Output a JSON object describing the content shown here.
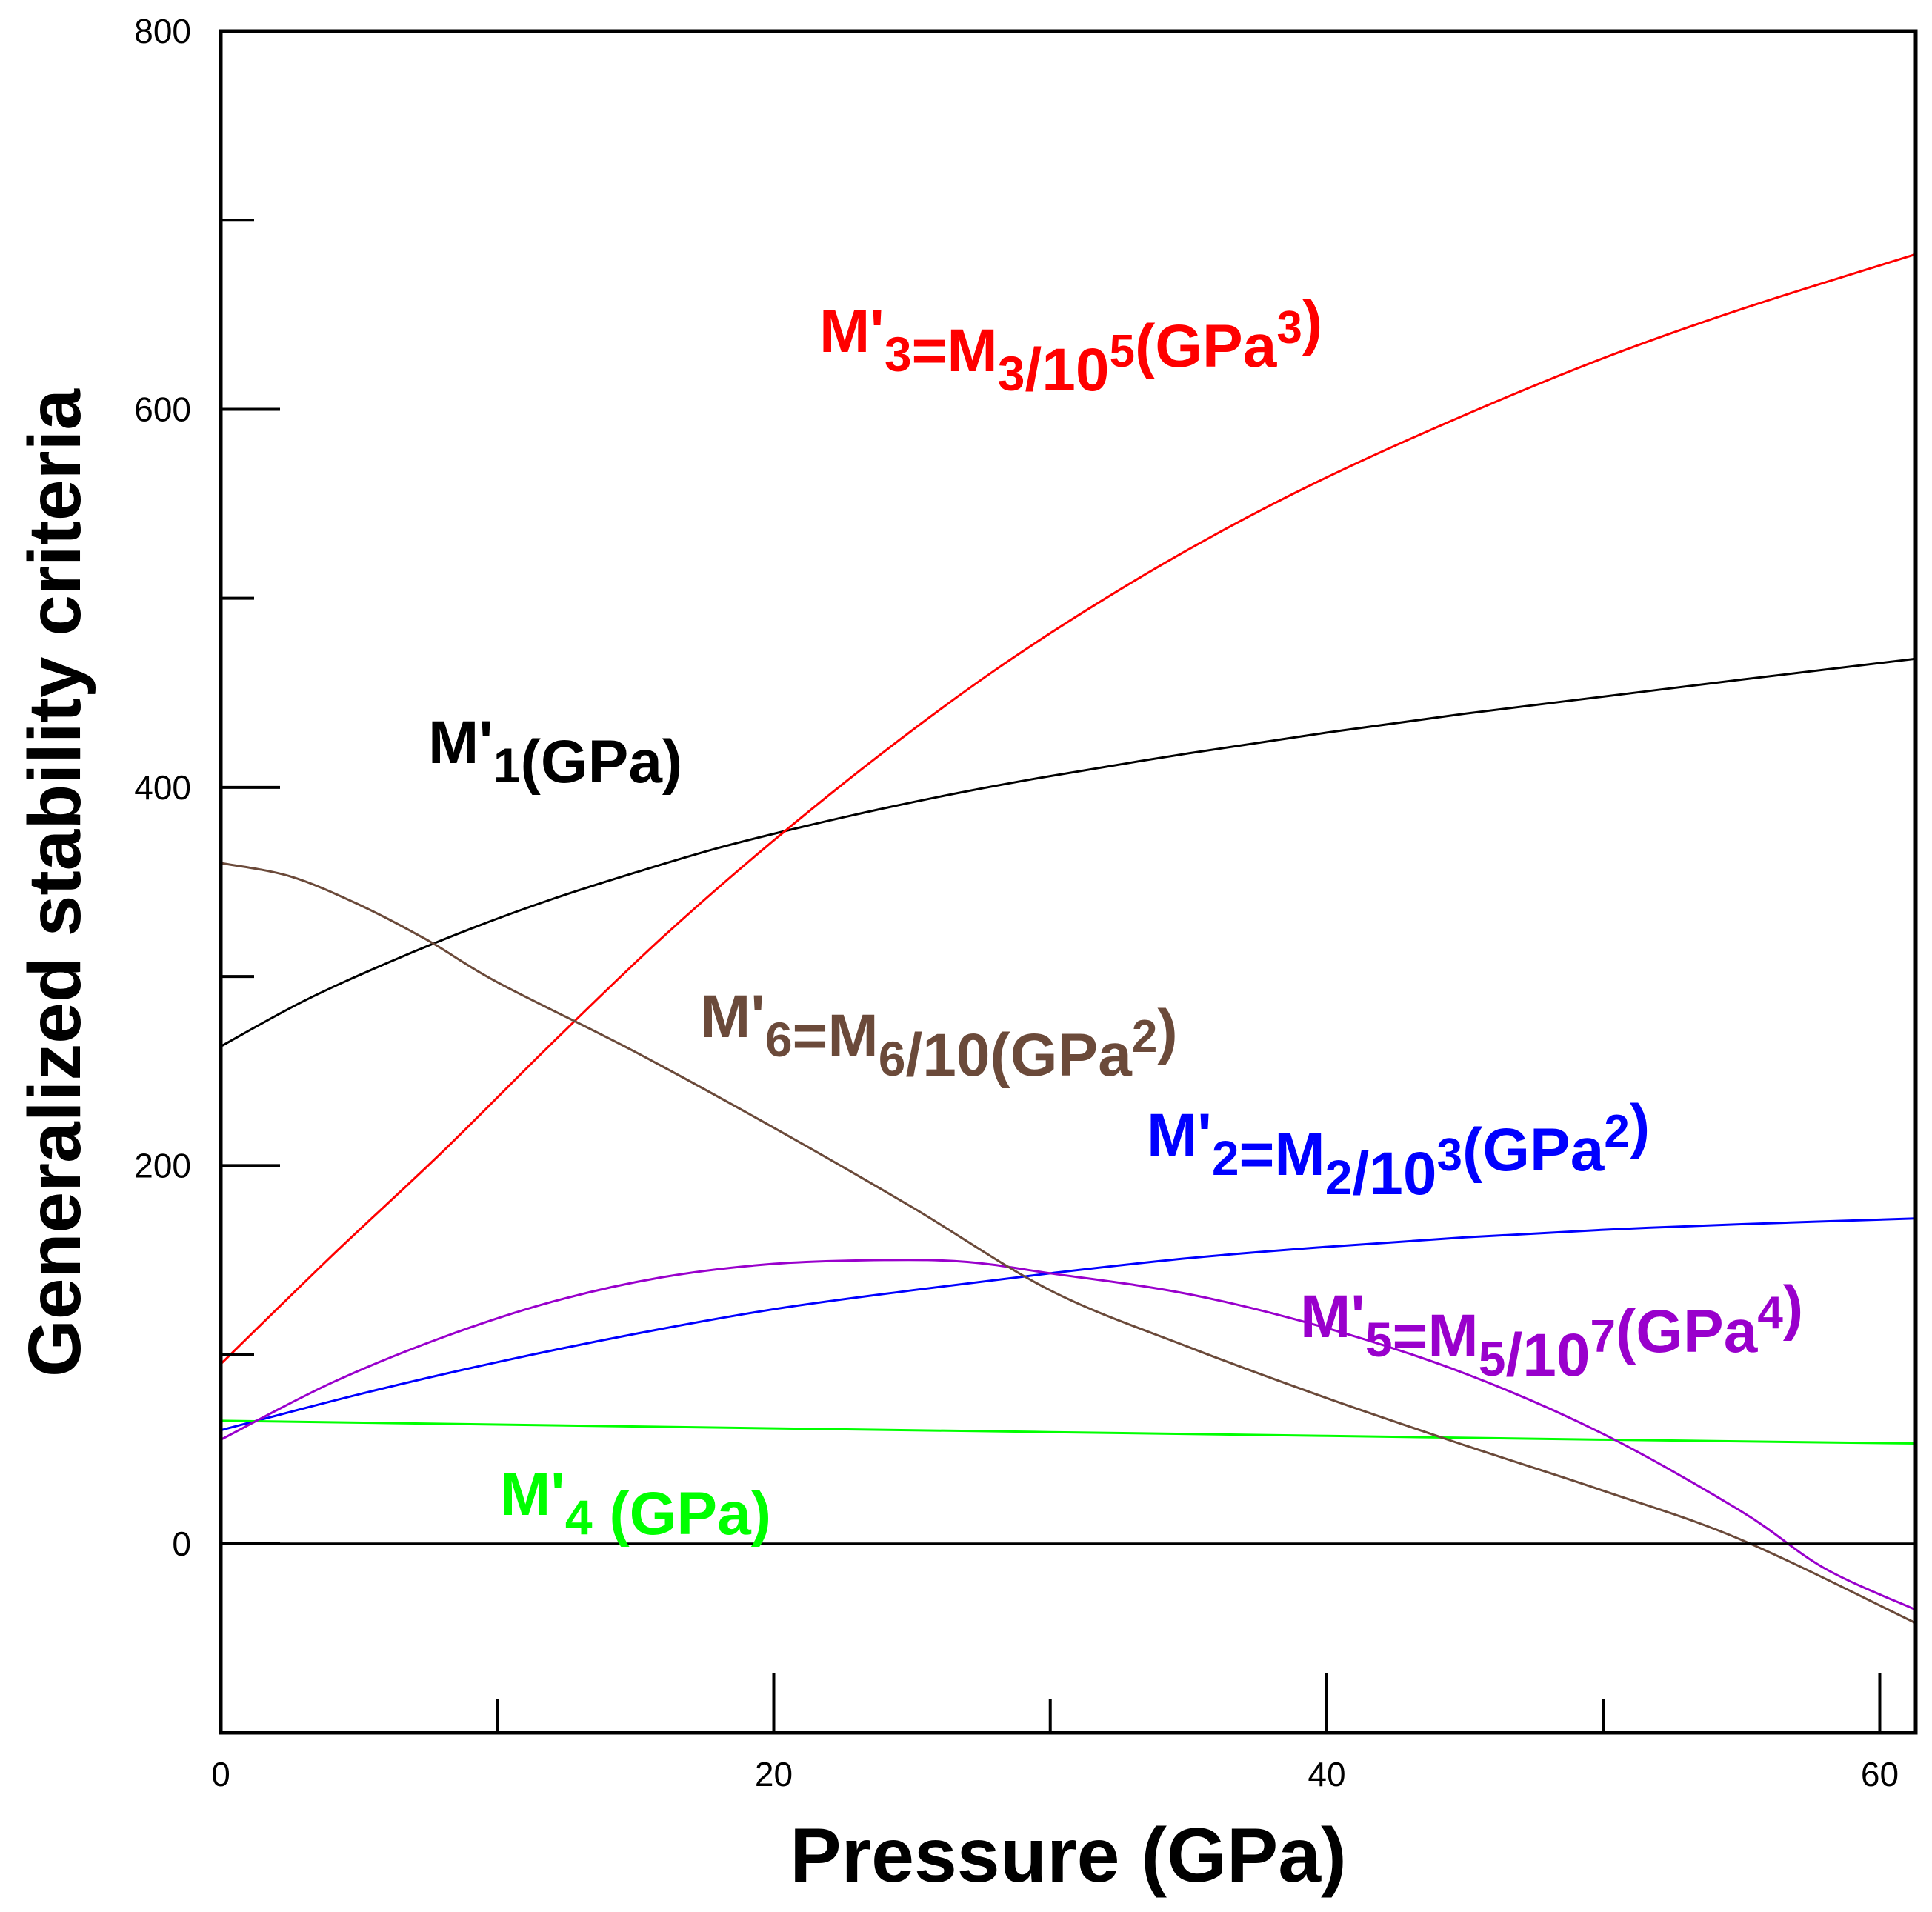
{
  "chart_data": {
    "type": "line",
    "title": "",
    "xlabel": "Pressure (GPa)",
    "ylabel": "Generalized stability criteria",
    "xlim": [
      0,
      61.3
    ],
    "ylim": [
      -100,
      800
    ],
    "xticks": [
      0,
      20,
      40,
      60
    ],
    "yticks": [
      0,
      200,
      400,
      600,
      800
    ],
    "xtick_labels": [
      "0",
      "20",
      "40",
      "60"
    ],
    "ytick_labels": [
      "0",
      "200",
      "400",
      "600",
      "800"
    ],
    "zero_line": 0,
    "grid": false,
    "series": [
      {
        "id": "m1",
        "name": "M'1(GPa)",
        "color": "#000000",
        "label_parts": [
          {
            "t": "M'"
          },
          {
            "t": "1",
            "s": "sub"
          },
          {
            "t": "(GPa)"
          }
        ],
        "x": [
          0,
          3,
          6,
          9,
          12,
          15,
          18,
          21,
          24,
          27,
          30,
          35,
          40,
          45,
          50,
          55,
          61.3
        ],
        "y": [
          263,
          287,
          307,
          325,
          341,
          355,
          368,
          379,
          389,
          398,
          406,
          418,
          429,
          439,
          448,
          457,
          468
        ]
      },
      {
        "id": "m2",
        "name": "M'2=M2/10^3(GPa^2)",
        "color": "#0000ff",
        "label_parts": [
          {
            "t": "M'"
          },
          {
            "t": "2",
            "s": "sub"
          },
          {
            "t": "=M"
          },
          {
            "t": "2",
            "s": "sub"
          },
          {
            "t": "/10"
          },
          {
            "t": "3",
            "s": "sup"
          },
          {
            "t": "(GPa"
          },
          {
            "t": "2",
            "s": "sup"
          },
          {
            "t": ")"
          }
        ],
        "x": [
          0,
          5,
          10,
          15,
          20,
          25,
          30,
          35,
          40,
          45,
          50,
          55,
          61.3
        ],
        "y": [
          60,
          79,
          96,
          111,
          124,
          134,
          143,
          151,
          157,
          162,
          166,
          169,
          172
        ]
      },
      {
        "id": "m3",
        "name": "M'3=M3/10^5(GPa^3)",
        "color": "#ff0000",
        "label_parts": [
          {
            "t": "M'"
          },
          {
            "t": "3",
            "s": "sub"
          },
          {
            "t": "=M"
          },
          {
            "t": "3",
            "s": "sub"
          },
          {
            "t": "/10"
          },
          {
            "t": "5",
            "s": "sup"
          },
          {
            "t": "(GPa"
          },
          {
            "t": "3",
            "s": "sup"
          },
          {
            "t": ")"
          }
        ],
        "x": [
          0,
          4,
          8,
          12,
          16,
          20,
          24,
          28,
          32,
          36,
          40,
          45,
          50,
          55,
          61.3
        ],
        "y": [
          95,
          152,
          207,
          265,
          321,
          372,
          419,
          462,
          500,
          534,
          564,
          597,
          627,
          653,
          682
        ]
      },
      {
        "id": "m4",
        "name": "M'4 (GPa)",
        "color": "#00ff00",
        "label_parts": [
          {
            "t": "M'"
          },
          {
            "t": "4",
            "s": "sub"
          },
          {
            "t": " (GPa)"
          }
        ],
        "x": [
          0,
          10,
          20,
          30,
          40,
          50,
          61.3
        ],
        "y": [
          65,
          63,
          61,
          59,
          57,
          55,
          53
        ]
      },
      {
        "id": "m5",
        "name": "M'5=M5/10^7(GPa^4)",
        "color": "#9900cc",
        "label_parts": [
          {
            "t": "M'"
          },
          {
            "t": "5",
            "s": "sub"
          },
          {
            "t": "=M"
          },
          {
            "t": "5",
            "s": "sub"
          },
          {
            "t": "/10"
          },
          {
            "t": "7",
            "s": "sup"
          },
          {
            "t": "(GPa"
          },
          {
            "t": "4",
            "s": "sup"
          },
          {
            "t": ")"
          }
        ],
        "x": [
          0,
          4,
          8,
          12,
          16,
          20,
          24,
          27,
          30,
          35,
          40,
          45,
          50,
          55,
          58,
          61.3
        ],
        "y": [
          55,
          85,
          109,
          128,
          141,
          148,
          150,
          149,
          143,
          132,
          114,
          90,
          58,
          17,
          -13,
          -35
        ]
      },
      {
        "id": "m6",
        "name": "M'6=M6/10(GPa^2)",
        "color": "#6b4a3a",
        "label_parts": [
          {
            "t": "M'"
          },
          {
            "t": "6",
            "s": "sub"
          },
          {
            "t": "=M"
          },
          {
            "t": "6",
            "s": "sub"
          },
          {
            "t": "/10(GPa"
          },
          {
            "t": "2",
            "s": "sup"
          },
          {
            "t": ")"
          }
        ],
        "x": [
          0,
          2.5,
          5,
          7.5,
          10,
          15,
          20,
          25,
          30,
          35,
          40,
          45,
          50,
          55,
          61.3
        ],
        "y": [
          360,
          353,
          338,
          319,
          297,
          260,
          220,
          178,
          134,
          104,
          77,
          52,
          28,
          2,
          -42
        ]
      }
    ]
  }
}
